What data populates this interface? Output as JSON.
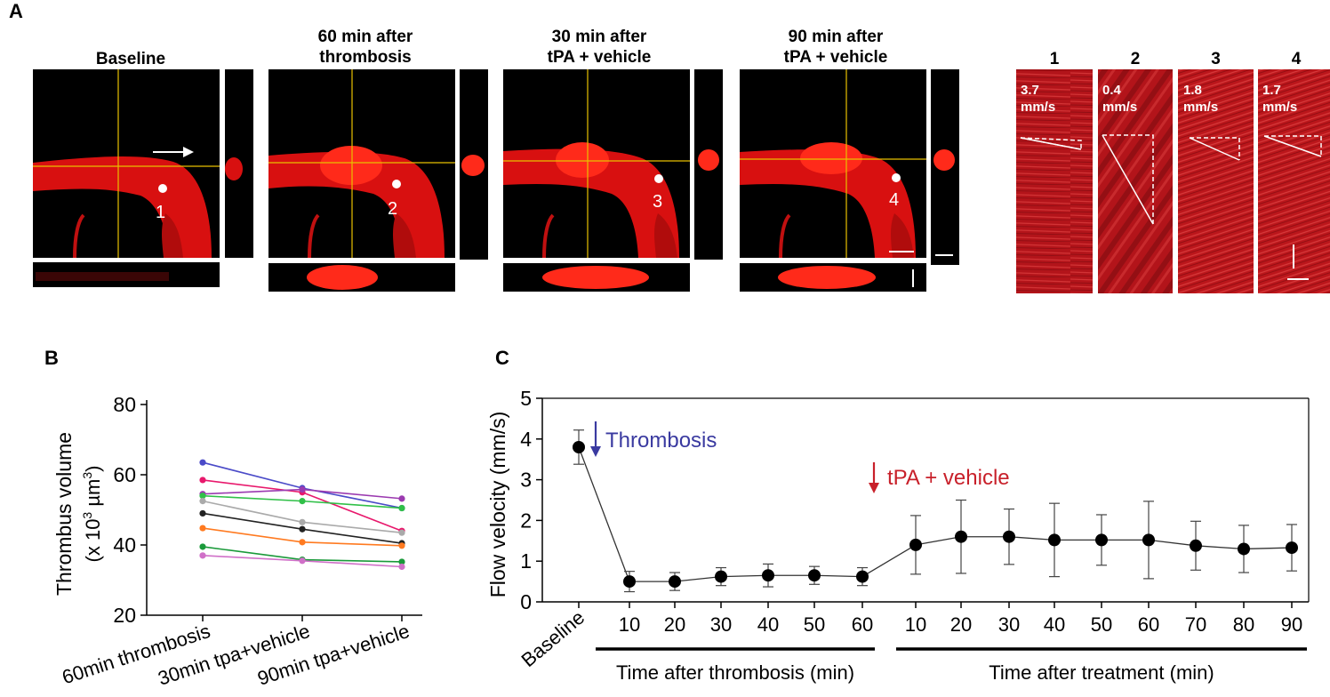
{
  "panel_labels": {
    "a": "A",
    "b": "B",
    "c": "C"
  },
  "panel_a": {
    "titles": [
      {
        "line1": "Baseline",
        "line2": ""
      },
      {
        "line1": "60 min after",
        "line2": "thrombosis"
      },
      {
        "line1": "30 min after",
        "line2": "tPA + vehicle"
      },
      {
        "line1": "90 min after",
        "line2": "tPA + vehicle"
      }
    ],
    "point_numbers": [
      "1",
      "2",
      "3",
      "4"
    ],
    "kymographs": [
      {
        "label": "1",
        "velocity": "3.7",
        "unit": "mm/s"
      },
      {
        "label": "2",
        "velocity": "0.4",
        "unit": "mm/s"
      },
      {
        "label": "3",
        "velocity": "1.8",
        "unit": "mm/s"
      },
      {
        "label": "4",
        "velocity": "1.7",
        "unit": "mm/s"
      }
    ],
    "colors": {
      "vessel": "#e8100e",
      "crosshair": "#e8c000",
      "background": "#000000",
      "kymo": "#c0181a"
    }
  },
  "chart_data": [
    {
      "type": "line",
      "panel": "B",
      "ylabel_line1": "Thrombus volume",
      "ylabel_line2_prefix": "(x 10",
      "ylabel_sup1": "3",
      "ylabel_mid": " µm",
      "ylabel_sup2": "3",
      "ylabel_suffix": ")",
      "categories": [
        "60min thrombosis",
        "30min tpa+vehicle",
        "90min tpa+vehicle"
      ],
      "ylim": [
        20,
        80
      ],
      "yticks": [
        "20",
        "40",
        "60",
        "80"
      ],
      "series": [
        {
          "color": "#4a4ac8",
          "values": [
            63.5,
            56.2,
            50.5
          ]
        },
        {
          "color": "#e8186c",
          "values": [
            58.5,
            55.0,
            44.0
          ]
        },
        {
          "color": "#9b3ab0",
          "values": [
            54.5,
            55.8,
            53.2
          ]
        },
        {
          "color": "#30c048",
          "values": [
            54.0,
            52.5,
            50.5
          ]
        },
        {
          "color": "#aaaaaa",
          "values": [
            52.5,
            46.5,
            43.5
          ]
        },
        {
          "color": "#222222",
          "values": [
            49.0,
            44.5,
            40.5
          ]
        },
        {
          "color": "#ff7a20",
          "values": [
            44.8,
            40.8,
            39.8
          ]
        },
        {
          "color": "#1a9a3a",
          "values": [
            39.5,
            35.8,
            35.2
          ]
        },
        {
          "color": "#d070c8",
          "values": [
            37.0,
            35.5,
            33.8
          ]
        }
      ]
    },
    {
      "type": "line",
      "panel": "C",
      "ylabel": "Flow velocity (mm/s)",
      "categories": [
        "Baseline",
        "10",
        "20",
        "30",
        "40",
        "50",
        "60",
        "10",
        "20",
        "30",
        "40",
        "50",
        "60",
        "70",
        "80",
        "90"
      ],
      "values": [
        3.8,
        0.5,
        0.5,
        0.62,
        0.65,
        0.65,
        0.62,
        1.4,
        1.6,
        1.6,
        1.52,
        1.52,
        1.52,
        1.38,
        1.3,
        1.33
      ],
      "errors": [
        0.42,
        0.25,
        0.22,
        0.22,
        0.28,
        0.22,
        0.22,
        0.72,
        0.9,
        0.68,
        0.9,
        0.62,
        0.95,
        0.6,
        0.58,
        0.57
      ],
      "ylim": [
        0,
        5
      ],
      "yticks": [
        "0",
        "1",
        "2",
        "3",
        "4",
        "5"
      ],
      "annotations": [
        {
          "text": "Thrombosis",
          "color": "#3a3aa0"
        },
        {
          "text": "tPA + vehicle",
          "color": "#c8202a"
        }
      ],
      "group_labels": [
        "Time after thrombosis (min)",
        "Time after treatment (min)"
      ]
    }
  ]
}
